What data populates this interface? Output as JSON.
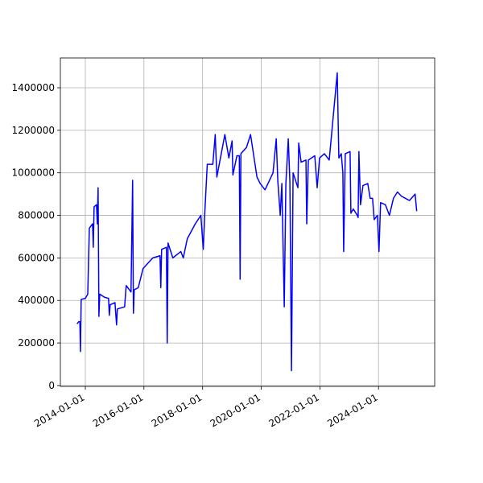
{
  "chart_data": {
    "type": "line",
    "color": "#0000ff",
    "grid": true,
    "xlim": [
      "2013-02-24",
      "2025-12-01"
    ],
    "xticks": [
      "2014-01-01",
      "2016-01-01",
      "2018-01-01",
      "2020-01-01",
      "2022-01-01",
      "2024-01-01"
    ],
    "ylim": [
      -4000,
      1540000
    ],
    "yticks": [
      0,
      200000,
      400000,
      600000,
      800000,
      1000000,
      1200000,
      1400000
    ],
    "x": [
      "2013-09-20",
      "2013-10-10",
      "2013-10-25",
      "2013-11-01",
      "2013-11-10",
      "2014-01-01",
      "2014-01-31",
      "2014-02-20",
      "2014-04-01",
      "2014-04-10",
      "2014-04-20",
      "2014-05-20",
      "2014-05-30",
      "2014-06-09",
      "2014-06-19",
      "2014-06-29",
      "2014-08-28",
      "2014-10-17",
      "2014-10-27",
      "2014-11-06",
      "2015-01-05",
      "2015-01-25",
      "2015-02-04",
      "2015-05-05",
      "2015-05-25",
      "2015-07-24",
      "2015-08-13",
      "2015-08-23",
      "2015-09-02",
      "2015-10-22",
      "2015-12-21",
      "2016-04-20",
      "2016-07-19",
      "2016-07-29",
      "2016-08-08",
      "2016-10-07",
      "2016-10-17",
      "2016-10-27",
      "2016-12-26",
      "2017-04-05",
      "2017-05-05",
      "2017-06-24",
      "2017-10-01",
      "2017-12-10",
      "2018-01-09",
      "2018-01-29",
      "2018-02-28",
      "2018-05-08",
      "2018-06-07",
      "2018-06-27",
      "2018-08-16",
      "2018-10-05",
      "2018-11-24",
      "2019-01-03",
      "2019-01-13",
      "2019-03-04",
      "2019-04-03",
      "2019-04-13",
      "2019-04-23",
      "2019-07-02",
      "2019-08-21",
      "2019-09-30",
      "2019-11-09",
      "2019-12-19",
      "2020-02-17",
      "2020-04-07",
      "2020-05-27",
      "2020-07-06",
      "2020-07-26",
      "2020-08-25",
      "2020-09-14",
      "2020-10-14",
      "2020-11-03",
      "2020-12-03",
      "2020-12-23",
      "2021-01-12",
      "2021-02-01",
      "2021-04-02",
      "2021-04-12",
      "2021-05-12",
      "2021-07-11",
      "2021-07-21",
      "2021-08-10",
      "2021-10-29",
      "2021-11-28",
      "2021-12-28",
      "2022-02-26",
      "2022-04-27",
      "2022-08-05",
      "2022-08-25",
      "2022-09-24",
      "2022-10-14",
      "2022-10-24",
      "2022-11-13",
      "2023-01-12",
      "2023-01-22",
      "2023-02-21",
      "2023-04-12",
      "2023-04-22",
      "2023-05-02",
      "2023-05-22",
      "2023-06-21",
      "2023-08-20",
      "2023-09-19",
      "2023-10-19",
      "2023-11-08",
      "2023-12-18",
      "2024-01-07",
      "2024-01-27",
      "2024-03-27",
      "2024-05-16",
      "2024-07-05",
      "2024-08-24",
      "2024-10-13",
      "2024-12-02",
      "2025-01-21",
      "2025-04-01",
      "2025-04-21"
    ],
    "values": [
      290000,
      300000,
      300000,
      160000,
      405000,
      410000,
      430000,
      740000,
      760000,
      650000,
      840000,
      850000,
      760000,
      930000,
      325000,
      430000,
      415000,
      410000,
      330000,
      380000,
      390000,
      285000,
      360000,
      370000,
      470000,
      440000,
      965000,
      340000,
      450000,
      460000,
      550000,
      600000,
      610000,
      460000,
      640000,
      650000,
      200000,
      670000,
      600000,
      630000,
      600000,
      690000,
      760000,
      800000,
      640000,
      820000,
      1040000,
      1040000,
      1180000,
      980000,
      1080000,
      1180000,
      1070000,
      1150000,
      990000,
      1080000,
      1080000,
      500000,
      1090000,
      1120000,
      1180000,
      1080000,
      980000,
      950000,
      920000,
      960000,
      1000000,
      1160000,
      960000,
      800000,
      950000,
      370000,
      950000,
      1160000,
      960000,
      70000,
      1000000,
      930000,
      1140000,
      1050000,
      1060000,
      760000,
      1060000,
      1080000,
      930000,
      1070000,
      1090000,
      1060000,
      1470000,
      1070000,
      1090000,
      1000000,
      630000,
      1090000,
      1100000,
      810000,
      830000,
      800000,
      790000,
      1100000,
      850000,
      940000,
      950000,
      880000,
      880000,
      780000,
      800000,
      630000,
      860000,
      850000,
      800000,
      880000,
      910000,
      890000,
      880000,
      870000,
      900000,
      820000
    ]
  }
}
